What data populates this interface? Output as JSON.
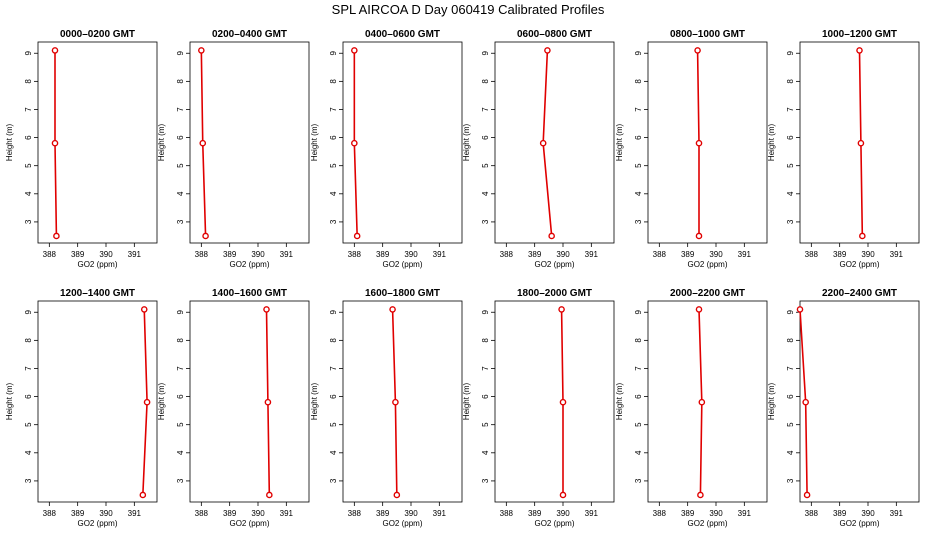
{
  "figure": {
    "title": "SPL AIRCOA D  Day 060419  Calibrated Profiles"
  },
  "colors": {
    "profile": "#e00000",
    "axis": "#000000"
  },
  "chart_data": [
    {
      "type": "line",
      "title": "0000–0200 GMT",
      "xlabel": "GO2 (ppm)",
      "ylabel": "Height (m)",
      "xlim": [
        387.6,
        391.8
      ],
      "ylim": [
        2.25,
        9.4
      ],
      "xticks": [
        388,
        389,
        390,
        391
      ],
      "yticks": [
        3,
        4,
        5,
        6,
        7,
        8,
        9
      ],
      "grid": false,
      "series": [
        {
          "x": [
            388.25,
            388.2,
            388.2
          ],
          "y": [
            2.5,
            5.8,
            9.1
          ]
        }
      ]
    },
    {
      "type": "line",
      "title": "0200–0400 GMT",
      "xlabel": "GO2 (ppm)",
      "ylabel": "Height (m)",
      "xlim": [
        387.6,
        391.8
      ],
      "ylim": [
        2.25,
        9.4
      ],
      "xticks": [
        388,
        389,
        390,
        391
      ],
      "yticks": [
        3,
        4,
        5,
        6,
        7,
        8,
        9
      ],
      "grid": false,
      "series": [
        {
          "x": [
            388.15,
            388.05,
            388.0
          ],
          "y": [
            2.5,
            5.8,
            9.1
          ]
        }
      ]
    },
    {
      "type": "line",
      "title": "0400–0600 GMT",
      "xlabel": "GO2 (ppm)",
      "ylabel": "Height (m)",
      "xlim": [
        387.6,
        391.8
      ],
      "ylim": [
        2.25,
        9.4
      ],
      "xticks": [
        388,
        389,
        390,
        391
      ],
      "yticks": [
        3,
        4,
        5,
        6,
        7,
        8,
        9
      ],
      "grid": false,
      "series": [
        {
          "x": [
            388.1,
            388.0,
            388.0
          ],
          "y": [
            2.5,
            5.8,
            9.1
          ]
        }
      ]
    },
    {
      "type": "line",
      "title": "0600–0800 GMT",
      "xlabel": "GO2 (ppm)",
      "ylabel": "Height (m)",
      "xlim": [
        387.6,
        391.8
      ],
      "ylim": [
        2.25,
        9.4
      ],
      "xticks": [
        388,
        389,
        390,
        391
      ],
      "yticks": [
        3,
        4,
        5,
        6,
        7,
        8,
        9
      ],
      "grid": false,
      "series": [
        {
          "x": [
            389.6,
            389.3,
            389.45
          ],
          "y": [
            2.5,
            5.8,
            9.1
          ]
        }
      ]
    },
    {
      "type": "line",
      "title": "0800–1000 GMT",
      "xlabel": "GO2 (ppm)",
      "ylabel": "Height (m)",
      "xlim": [
        387.6,
        391.8
      ],
      "ylim": [
        2.25,
        9.4
      ],
      "xticks": [
        388,
        389,
        390,
        391
      ],
      "yticks": [
        3,
        4,
        5,
        6,
        7,
        8,
        9
      ],
      "grid": false,
      "series": [
        {
          "x": [
            389.4,
            389.4,
            389.35
          ],
          "y": [
            2.5,
            5.8,
            9.1
          ]
        }
      ]
    },
    {
      "type": "line",
      "title": "1000–1200 GMT",
      "xlabel": "GO2 (ppm)",
      "ylabel": "Height (m)",
      "xlim": [
        387.6,
        391.8
      ],
      "ylim": [
        2.25,
        9.4
      ],
      "xticks": [
        388,
        389,
        390,
        391
      ],
      "yticks": [
        3,
        4,
        5,
        6,
        7,
        8,
        9
      ],
      "grid": false,
      "series": [
        {
          "x": [
            389.8,
            389.75,
            389.7
          ],
          "y": [
            2.5,
            5.8,
            9.1
          ]
        }
      ]
    },
    {
      "type": "line",
      "title": "1200–1400 GMT",
      "xlabel": "GO2 (ppm)",
      "ylabel": "Height (m)",
      "xlim": [
        387.6,
        391.8
      ],
      "ylim": [
        2.25,
        9.4
      ],
      "xticks": [
        388,
        389,
        390,
        391
      ],
      "yticks": [
        3,
        4,
        5,
        6,
        7,
        8,
        9
      ],
      "grid": false,
      "series": [
        {
          "x": [
            391.3,
            391.45,
            391.35
          ],
          "y": [
            2.5,
            5.8,
            9.1
          ]
        }
      ]
    },
    {
      "type": "line",
      "title": "1400–1600 GMT",
      "xlabel": "GO2 (ppm)",
      "ylabel": "Height (m)",
      "xlim": [
        387.6,
        391.8
      ],
      "ylim": [
        2.25,
        9.4
      ],
      "xticks": [
        388,
        389,
        390,
        391
      ],
      "yticks": [
        3,
        4,
        5,
        6,
        7,
        8,
        9
      ],
      "grid": false,
      "series": [
        {
          "x": [
            390.4,
            390.35,
            390.3
          ],
          "y": [
            2.5,
            5.8,
            9.1
          ]
        }
      ]
    },
    {
      "type": "line",
      "title": "1600–1800 GMT",
      "xlabel": "GO2 (ppm)",
      "ylabel": "Height (m)",
      "xlim": [
        387.6,
        391.8
      ],
      "ylim": [
        2.25,
        9.4
      ],
      "xticks": [
        388,
        389,
        390,
        391
      ],
      "yticks": [
        3,
        4,
        5,
        6,
        7,
        8,
        9
      ],
      "grid": false,
      "series": [
        {
          "x": [
            389.5,
            389.45,
            389.35
          ],
          "y": [
            2.5,
            5.8,
            9.1
          ]
        }
      ]
    },
    {
      "type": "line",
      "title": "1800–2000 GMT",
      "xlabel": "GO2 (ppm)",
      "ylabel": "Height (m)",
      "xlim": [
        387.6,
        391.8
      ],
      "ylim": [
        2.25,
        9.4
      ],
      "xticks": [
        388,
        389,
        390,
        391
      ],
      "yticks": [
        3,
        4,
        5,
        6,
        7,
        8,
        9
      ],
      "grid": false,
      "series": [
        {
          "x": [
            390.0,
            390.0,
            389.95
          ],
          "y": [
            2.5,
            5.8,
            9.1
          ]
        }
      ]
    },
    {
      "type": "line",
      "title": "2000–2200 GMT",
      "xlabel": "GO2 (ppm)",
      "ylabel": "Height (m)",
      "xlim": [
        387.6,
        391.8
      ],
      "ylim": [
        2.25,
        9.4
      ],
      "xticks": [
        388,
        389,
        390,
        391
      ],
      "yticks": [
        3,
        4,
        5,
        6,
        7,
        8,
        9
      ],
      "grid": false,
      "series": [
        {
          "x": [
            389.45,
            389.5,
            389.4
          ],
          "y": [
            2.5,
            5.8,
            9.1
          ]
        }
      ]
    },
    {
      "type": "line",
      "title": "2200–2400 GMT",
      "xlabel": "GO2 (ppm)",
      "ylabel": "Height (m)",
      "xlim": [
        387.6,
        391.8
      ],
      "ylim": [
        2.25,
        9.4
      ],
      "xticks": [
        388,
        389,
        390,
        391
      ],
      "yticks": [
        3,
        4,
        5,
        6,
        7,
        8,
        9
      ],
      "grid": false,
      "series": [
        {
          "x": [
            387.85,
            387.8,
            387.6
          ],
          "y": [
            2.5,
            5.8,
            9.1
          ]
        }
      ]
    }
  ]
}
